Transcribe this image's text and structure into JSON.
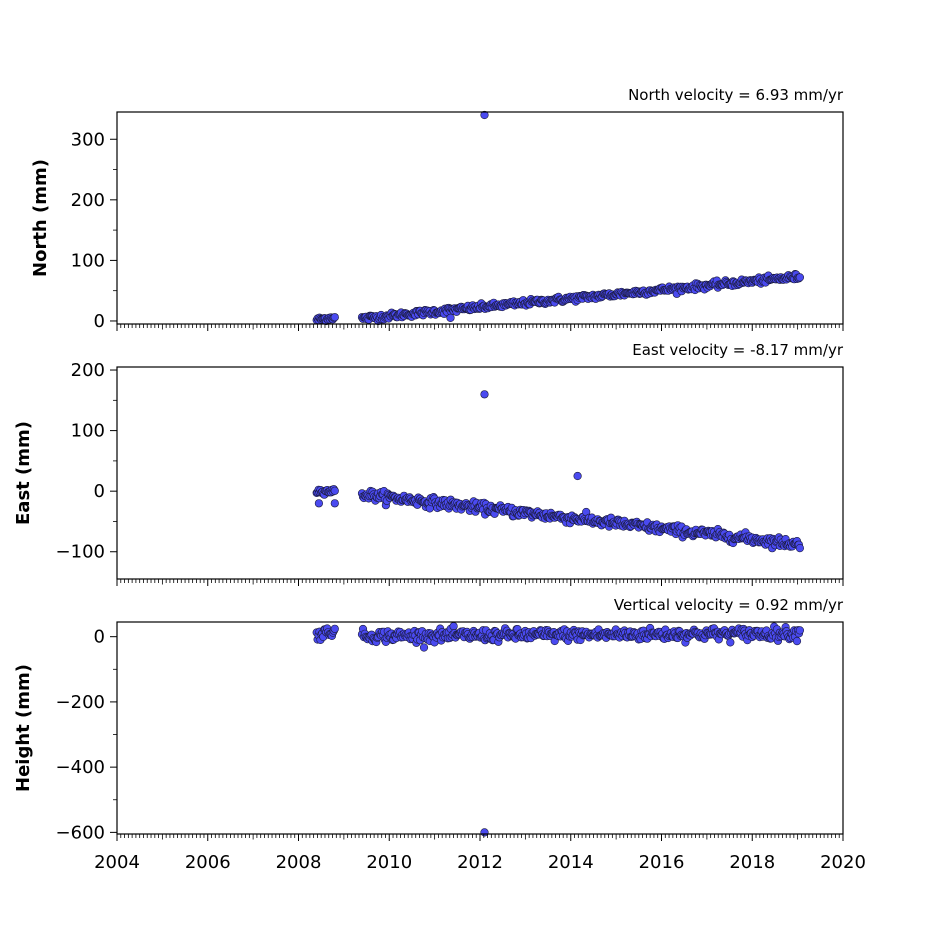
{
  "chart_data": [
    {
      "type": "scatter",
      "title": "North velocity = 6.93 mm/yr",
      "ylabel": "North (mm)",
      "xlim": [
        2004,
        2020
      ],
      "ylim": [
        -5,
        345
      ],
      "yticks": [
        0,
        100,
        200,
        300
      ],
      "xticks": [
        2004,
        2006,
        2008,
        2010,
        2012,
        2014,
        2016,
        2018,
        2020
      ],
      "show_xticklabels": false,
      "marker_color": "#4a4af0",
      "series": [
        {
          "segments": [
            {
              "x0": 2008.4,
              "x1": 2008.8,
              "y0": 2,
              "y1": 6,
              "n": 20,
              "noise": 2
            },
            {
              "x0": 2009.4,
              "x1": 2019.05,
              "y0": 4,
              "y1": 73,
              "n": 460,
              "noise": 2.5
            }
          ],
          "outliers": [
            [
              2012.1,
              340
            ],
            [
              2011.35,
              5
            ]
          ]
        }
      ]
    },
    {
      "type": "scatter",
      "title": "East velocity = -8.17 mm/yr",
      "ylabel": "East (mm)",
      "xlim": [
        2004,
        2020
      ],
      "ylim": [
        -145,
        205
      ],
      "yticks": [
        -100,
        0,
        100,
        200
      ],
      "xticks": [
        2004,
        2006,
        2008,
        2010,
        2012,
        2014,
        2016,
        2018,
        2020
      ],
      "show_xticklabels": false,
      "marker_color": "#4a4af0",
      "series": [
        {
          "segments": [
            {
              "x0": 2008.4,
              "x1": 2008.8,
              "y0": 0,
              "y1": 0,
              "n": 20,
              "noise": 2
            },
            {
              "x0": 2009.4,
              "x1": 2019.05,
              "y0": -5,
              "y1": -88,
              "n": 460,
              "noise": 4
            }
          ],
          "outliers": [
            [
              2012.1,
              160
            ],
            [
              2014.15,
              25
            ],
            [
              2008.45,
              -20
            ],
            [
              2008.8,
              -20
            ]
          ]
        }
      ]
    },
    {
      "type": "scatter",
      "title": "Vertical velocity = 0.92 mm/yr",
      "ylabel": "Height (mm)",
      "xlim": [
        2004,
        2020
      ],
      "ylim": [
        -605,
        45
      ],
      "yticks": [
        -600,
        -400,
        -200,
        0
      ],
      "xticks": [
        2004,
        2006,
        2008,
        2010,
        2012,
        2014,
        2016,
        2018,
        2020
      ],
      "show_xticklabels": true,
      "marker_color": "#4a4af0",
      "series": [
        {
          "segments": [
            {
              "x0": 2008.4,
              "x1": 2008.8,
              "y0": 5,
              "y1": 20,
              "n": 20,
              "noise": 8
            },
            {
              "x0": 2009.4,
              "x1": 2019.05,
              "y0": 2,
              "y1": 10,
              "n": 460,
              "noise": 9
            }
          ],
          "outliers": [
            [
              2012.1,
              -600
            ]
          ]
        }
      ]
    }
  ]
}
